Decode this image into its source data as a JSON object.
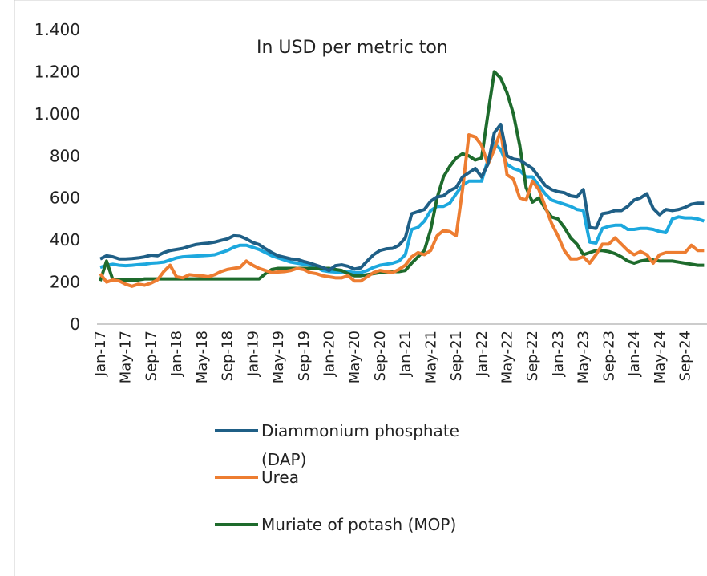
{
  "chart_data": {
    "type": "line",
    "title": "In USD  per metric ton",
    "categories": [
      "Jan-17",
      null,
      null,
      null,
      "May-17",
      null,
      null,
      null,
      "Sep-17",
      null,
      null,
      null,
      "Jan-18",
      null,
      null,
      null,
      "May-18",
      null,
      null,
      null,
      "Sep-18",
      null,
      null,
      null,
      "Jan-19",
      null,
      null,
      null,
      "May-19",
      null,
      null,
      null,
      "Sep-19",
      null,
      null,
      null,
      "Jan-20",
      null,
      null,
      null,
      "May-20",
      null,
      null,
      null,
      "Sep-20",
      null,
      null,
      null,
      "Jan-21",
      null,
      null,
      null,
      "May-21",
      null,
      null,
      null,
      "Sep-21",
      null,
      null,
      null,
      "Jan-22",
      null,
      null,
      null,
      "May-22",
      null,
      null,
      null,
      "Sep-22",
      null,
      null,
      null,
      "Jan-23",
      null,
      null,
      null,
      "May-23",
      null,
      null,
      null,
      "Sep-23",
      null,
      null,
      null,
      "Jan-24",
      null,
      null,
      null,
      "May-24",
      null,
      null,
      null,
      "Sep-24",
      null,
      null,
      null
    ],
    "series": [
      {
        "name": "Diammonium phosphate (DAP)",
        "color": "#1f5f86",
        "values": [
          310,
          325,
          320,
          310,
          310,
          312,
          315,
          320,
          328,
          325,
          340,
          350,
          355,
          360,
          370,
          378,
          382,
          385,
          390,
          398,
          405,
          420,
          418,
          405,
          388,
          378,
          358,
          340,
          325,
          318,
          310,
          308,
          298,
          290,
          280,
          270,
          255,
          278,
          282,
          275,
          262,
          268,
          300,
          330,
          350,
          358,
          360,
          375,
          410,
          525,
          535,
          545,
          585,
          605,
          610,
          635,
          650,
          700,
          720,
          740,
          700,
          760,
          910,
          950,
          800,
          785,
          780,
          760,
          740,
          700,
          660,
          640,
          630,
          625,
          610,
          605,
          640,
          460,
          455,
          525,
          530,
          540,
          540,
          560,
          590,
          600,
          620,
          550,
          520,
          545,
          540,
          545,
          555,
          570,
          575,
          575
        ]
      },
      {
        "name": "Urea",
        "color": "#ed7d31",
        "values": [
          240,
          200,
          210,
          205,
          190,
          180,
          190,
          185,
          195,
          210,
          250,
          280,
          225,
          220,
          235,
          232,
          230,
          225,
          235,
          250,
          260,
          265,
          270,
          300,
          280,
          265,
          255,
          245,
          248,
          250,
          255,
          265,
          260,
          245,
          240,
          230,
          225,
          220,
          220,
          230,
          205,
          205,
          225,
          245,
          255,
          250,
          245,
          260,
          280,
          320,
          340,
          330,
          350,
          420,
          445,
          440,
          420,
          640,
          900,
          890,
          850,
          760,
          830,
          920,
          710,
          690,
          600,
          590,
          680,
          640,
          560,
          480,
          420,
          350,
          310,
          310,
          320,
          290,
          330,
          380,
          380,
          410,
          380,
          350,
          330,
          345,
          330,
          290,
          330,
          340,
          340,
          340,
          340,
          375,
          350,
          350
        ]
      },
      {
        "name": "Muriate of potash (MOP)",
        "color": "#1e6b2c",
        "values": [
          205,
          300,
          210,
          210,
          210,
          210,
          210,
          215,
          215,
          215,
          215,
          215,
          215,
          215,
          215,
          215,
          215,
          215,
          215,
          215,
          215,
          215,
          215,
          215,
          215,
          215,
          240,
          260,
          265,
          265,
          265,
          265,
          265,
          265,
          265,
          265,
          265,
          260,
          255,
          240,
          230,
          230,
          235,
          240,
          245,
          248,
          250,
          250,
          255,
          290,
          320,
          350,
          450,
          600,
          700,
          750,
          790,
          810,
          800,
          780,
          790,
          1000,
          1200,
          1170,
          1100,
          1000,
          850,
          650,
          580,
          600,
          550,
          510,
          500,
          460,
          410,
          380,
          330,
          340,
          350,
          350,
          345,
          335,
          320,
          300,
          290,
          300,
          305,
          305,
          300,
          300,
          300,
          295,
          290,
          285,
          280,
          280
        ]
      },
      {
        "color": "#1da8de",
        "values": [
          270,
          280,
          285,
          280,
          278,
          280,
          283,
          285,
          290,
          292,
          295,
          305,
          315,
          320,
          322,
          324,
          325,
          327,
          330,
          340,
          350,
          365,
          375,
          375,
          365,
          355,
          340,
          325,
          315,
          305,
          295,
          290,
          285,
          280,
          270,
          255,
          250,
          248,
          248,
          250,
          245,
          245,
          255,
          270,
          280,
          285,
          290,
          300,
          330,
          450,
          460,
          490,
          540,
          560,
          560,
          575,
          620,
          660,
          680,
          680,
          680,
          780,
          860,
          830,
          760,
          740,
          730,
          700,
          700,
          660,
          620,
          590,
          580,
          570,
          560,
          545,
          540,
          390,
          385,
          455,
          465,
          470,
          470,
          450,
          450,
          455,
          455,
          450,
          440,
          435,
          500,
          510,
          505,
          505,
          500,
          490
        ]
      }
    ],
    "ylim": [
      0,
      1400
    ],
    "yticks": [
      0,
      200,
      400,
      600,
      800,
      {
        "value": 1000,
        "label": "1.000"
      },
      {
        "value": 1200,
        "label": "1.200"
      },
      {
        "value": 1400,
        "label": "1.400"
      }
    ]
  }
}
